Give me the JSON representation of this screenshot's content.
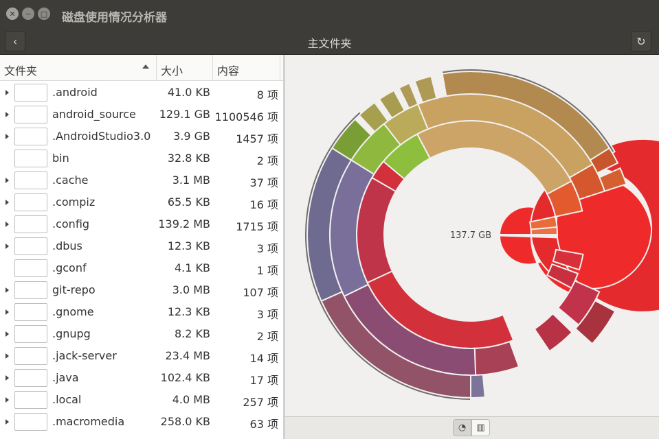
{
  "window": {
    "title": "磁盘使用情况分析器"
  },
  "header": {
    "title": "主文件夹"
  },
  "columns": {
    "name": "文件夹",
    "size": "大小",
    "contents": "内容"
  },
  "rows": [
    {
      "name": ".android",
      "size": "41.0 KB",
      "contents": "8 项",
      "expandable": true
    },
    {
      "name": "android_source",
      "size": "129.1 GB",
      "contents": "1100546 项",
      "expandable": true
    },
    {
      "name": ".AndroidStudio3.0",
      "size": "3.9 GB",
      "contents": "1457 项",
      "expandable": true
    },
    {
      "name": "bin",
      "size": "32.8 KB",
      "contents": "2 项",
      "expandable": false
    },
    {
      "name": ".cache",
      "size": "3.1 MB",
      "contents": "37 项",
      "expandable": true
    },
    {
      "name": ".compiz",
      "size": "65.5 KB",
      "contents": "16 项",
      "expandable": true
    },
    {
      "name": ".config",
      "size": "139.2 MB",
      "contents": "1715 项",
      "expandable": true
    },
    {
      "name": ".dbus",
      "size": "12.3 KB",
      "contents": "3 项",
      "expandable": true
    },
    {
      "name": ".gconf",
      "size": "4.1 KB",
      "contents": "1 项",
      "expandable": false
    },
    {
      "name": "git-repo",
      "size": "3.0 MB",
      "contents": "107 项",
      "expandable": true
    },
    {
      "name": ".gnome",
      "size": "12.3 KB",
      "contents": "3 项",
      "expandable": true
    },
    {
      "name": ".gnupg",
      "size": "8.2 KB",
      "contents": "2 项",
      "expandable": true
    },
    {
      "name": ".jack-server",
      "size": "23.4 MB",
      "contents": "14 项",
      "expandable": true
    },
    {
      "name": ".java",
      "size": "102.4 KB",
      "contents": "17 项",
      "expandable": true
    },
    {
      "name": ".local",
      "size": "4.0 MB",
      "contents": "257 项",
      "expandable": true
    },
    {
      "name": ".macromedia",
      "size": "258.0 KB",
      "contents": "63 项",
      "expandable": true
    }
  ],
  "chart": {
    "center_label": "137.7 GB"
  },
  "icons": {
    "close": "close-icon",
    "minimize": "minimize-icon",
    "maximize": "maximize-icon",
    "back": "back-arrow-icon",
    "refresh": "refresh-icon",
    "ring_view": "ring-chart-icon",
    "treemap_view": "treemap-icon"
  }
}
